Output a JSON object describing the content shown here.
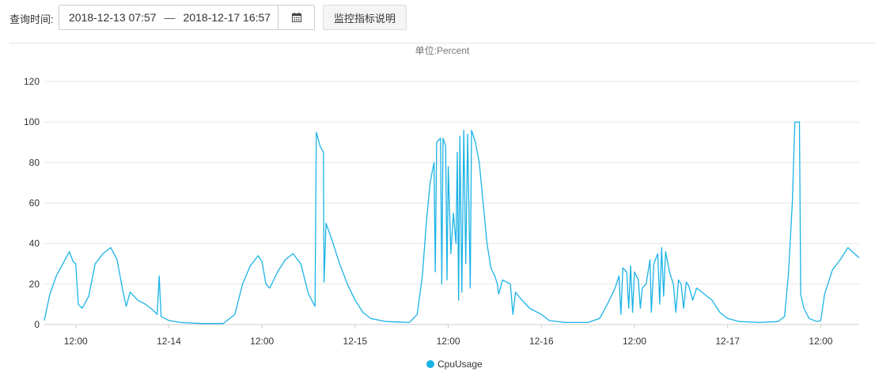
{
  "query": {
    "label": "查询时间:",
    "start": "2018-12-13 07:57",
    "separator": "—",
    "end": "2018-12-17 16:57",
    "calendar_icon": "calendar-icon",
    "help_button": "监控指标说明"
  },
  "chart_data": {
    "type": "line",
    "title": "",
    "unit_label": "单位:Percent",
    "xlabel": "",
    "ylabel": "",
    "ylim": [
      0,
      120
    ],
    "yticks": [
      0,
      20,
      40,
      60,
      80,
      100,
      120
    ],
    "xlim": [
      "2018-12-13 07:57",
      "2018-12-17 16:57"
    ],
    "xticks": [
      {
        "t": "2018-12-13 12:00",
        "label": "12:00"
      },
      {
        "t": "2018-12-14 00:00",
        "label": "12-14"
      },
      {
        "t": "2018-12-14 12:00",
        "label": "12:00"
      },
      {
        "t": "2018-12-15 00:00",
        "label": "12-15"
      },
      {
        "t": "2018-12-15 12:00",
        "label": "12:00"
      },
      {
        "t": "2018-12-16 00:00",
        "label": "12-16"
      },
      {
        "t": "2018-12-16 12:00",
        "label": "12:00"
      },
      {
        "t": "2018-12-17 00:00",
        "label": "12-17"
      },
      {
        "t": "2018-12-17 12:00",
        "label": "12:00"
      }
    ],
    "grid": "horizontal",
    "legend_position": "bottom-center",
    "series": [
      {
        "name": "CpuUsage",
        "color": "#1ab3e6",
        "points": [
          [
            "2018-12-13 07:57",
            2
          ],
          [
            "2018-12-13 08:40",
            15
          ],
          [
            "2018-12-13 09:30",
            24
          ],
          [
            "2018-12-13 10:20",
            30
          ],
          [
            "2018-12-13 11:10",
            36
          ],
          [
            "2018-12-13 11:40",
            31
          ],
          [
            "2018-12-13 12:00",
            30
          ],
          [
            "2018-12-13 12:20",
            10
          ],
          [
            "2018-12-13 12:50",
            8
          ],
          [
            "2018-12-13 13:40",
            14
          ],
          [
            "2018-12-13 14:30",
            30
          ],
          [
            "2018-12-13 15:30",
            35
          ],
          [
            "2018-12-13 16:30",
            38
          ],
          [
            "2018-12-13 17:20",
            32
          ],
          [
            "2018-12-13 18:00",
            18
          ],
          [
            "2018-12-13 18:30",
            9
          ],
          [
            "2018-12-13 19:00",
            16
          ],
          [
            "2018-12-13 20:00",
            12
          ],
          [
            "2018-12-13 21:00",
            10
          ],
          [
            "2018-12-13 22:00",
            7
          ],
          [
            "2018-12-13 22:30",
            5
          ],
          [
            "2018-12-13 22:45",
            24
          ],
          [
            "2018-12-13 23:00",
            4
          ],
          [
            "2018-12-14 00:00",
            2
          ],
          [
            "2018-12-14 01:30",
            1
          ],
          [
            "2018-12-14 04:00",
            0.5
          ],
          [
            "2018-12-14 07:00",
            0.5
          ],
          [
            "2018-12-14 08:30",
            5
          ],
          [
            "2018-12-14 09:30",
            20
          ],
          [
            "2018-12-14 10:30",
            29
          ],
          [
            "2018-12-14 11:30",
            34
          ],
          [
            "2018-12-14 12:00",
            31
          ],
          [
            "2018-12-14 12:30",
            20
          ],
          [
            "2018-12-14 13:00",
            18
          ],
          [
            "2018-12-14 14:00",
            26
          ],
          [
            "2018-12-14 15:00",
            32
          ],
          [
            "2018-12-14 16:00",
            35
          ],
          [
            "2018-12-14 17:00",
            30
          ],
          [
            "2018-12-14 18:00",
            15
          ],
          [
            "2018-12-14 18:50",
            9
          ],
          [
            "2018-12-14 19:00",
            95
          ],
          [
            "2018-12-14 19:30",
            88
          ],
          [
            "2018-12-14 19:55",
            85
          ],
          [
            "2018-12-14 20:00",
            21
          ],
          [
            "2018-12-14 20:15",
            50
          ],
          [
            "2018-12-14 21:00",
            42
          ],
          [
            "2018-12-14 22:00",
            30
          ],
          [
            "2018-12-14 23:00",
            20
          ],
          [
            "2018-12-15 00:00",
            12
          ],
          [
            "2018-12-15 01:00",
            6
          ],
          [
            "2018-12-15 02:00",
            3
          ],
          [
            "2018-12-15 04:00",
            1.5
          ],
          [
            "2018-12-15 07:00",
            1
          ],
          [
            "2018-12-15 08:00",
            5
          ],
          [
            "2018-12-15 08:40",
            24
          ],
          [
            "2018-12-15 09:10",
            50
          ],
          [
            "2018-12-15 09:40",
            70
          ],
          [
            "2018-12-15 10:10",
            80
          ],
          [
            "2018-12-15 10:20",
            26
          ],
          [
            "2018-12-15 10:30",
            90
          ],
          [
            "2018-12-15 11:00",
            92
          ],
          [
            "2018-12-15 11:10",
            20
          ],
          [
            "2018-12-15 11:20",
            92
          ],
          [
            "2018-12-15 11:40",
            88
          ],
          [
            "2018-12-15 11:50",
            22
          ],
          [
            "2018-12-15 12:00",
            78
          ],
          [
            "2018-12-15 12:20",
            35
          ],
          [
            "2018-12-15 12:40",
            55
          ],
          [
            "2018-12-15 13:00",
            40
          ],
          [
            "2018-12-15 13:10",
            85
          ],
          [
            "2018-12-15 13:20",
            12
          ],
          [
            "2018-12-15 13:30",
            93
          ],
          [
            "2018-12-15 13:45",
            16
          ],
          [
            "2018-12-15 14:00",
            96
          ],
          [
            "2018-12-15 14:15",
            30
          ],
          [
            "2018-12-15 14:30",
            94
          ],
          [
            "2018-12-15 14:50",
            18
          ],
          [
            "2018-12-15 15:00",
            96
          ],
          [
            "2018-12-15 15:30",
            90
          ],
          [
            "2018-12-15 16:00",
            80
          ],
          [
            "2018-12-15 16:30",
            60
          ],
          [
            "2018-12-15 17:00",
            40
          ],
          [
            "2018-12-15 17:30",
            28
          ],
          [
            "2018-12-15 18:00",
            24
          ],
          [
            "2018-12-15 18:20",
            20
          ],
          [
            "2018-12-15 18:30",
            15
          ],
          [
            "2018-12-15 19:00",
            22
          ],
          [
            "2018-12-15 20:00",
            20
          ],
          [
            "2018-12-15 20:20",
            5
          ],
          [
            "2018-12-15 20:40",
            16
          ],
          [
            "2018-12-15 21:30",
            12
          ],
          [
            "2018-12-15 22:30",
            8
          ],
          [
            "2018-12-16 00:00",
            5
          ],
          [
            "2018-12-16 01:00",
            2
          ],
          [
            "2018-12-16 03:00",
            1
          ],
          [
            "2018-12-16 06:00",
            1
          ],
          [
            "2018-12-16 07:30",
            3
          ],
          [
            "2018-12-16 08:30",
            10
          ],
          [
            "2018-12-16 09:30",
            18
          ],
          [
            "2018-12-16 10:00",
            24
          ],
          [
            "2018-12-16 10:15",
            5
          ],
          [
            "2018-12-16 10:30",
            28
          ],
          [
            "2018-12-16 11:00",
            26
          ],
          [
            "2018-12-16 11:15",
            8
          ],
          [
            "2018-12-16 11:30",
            29
          ],
          [
            "2018-12-16 11:45",
            6
          ],
          [
            "2018-12-16 12:00",
            26
          ],
          [
            "2018-12-16 12:30",
            22
          ],
          [
            "2018-12-16 12:45",
            8
          ],
          [
            "2018-12-16 13:00",
            18
          ],
          [
            "2018-12-16 13:30",
            20
          ],
          [
            "2018-12-16 14:00",
            32
          ],
          [
            "2018-12-16 14:10",
            6
          ],
          [
            "2018-12-16 14:30",
            30
          ],
          [
            "2018-12-16 15:00",
            35
          ],
          [
            "2018-12-16 15:15",
            10
          ],
          [
            "2018-12-16 15:30",
            38
          ],
          [
            "2018-12-16 15:45",
            14
          ],
          [
            "2018-12-16 16:00",
            36
          ],
          [
            "2018-12-16 16:30",
            26
          ],
          [
            "2018-12-16 17:00",
            20
          ],
          [
            "2018-12-16 17:20",
            6
          ],
          [
            "2018-12-16 17:40",
            22
          ],
          [
            "2018-12-16 18:00",
            20
          ],
          [
            "2018-12-16 18:20",
            8
          ],
          [
            "2018-12-16 18:40",
            21
          ],
          [
            "2018-12-16 19:00",
            19
          ],
          [
            "2018-12-16 19:30",
            12
          ],
          [
            "2018-12-16 20:00",
            18
          ],
          [
            "2018-12-16 21:00",
            15
          ],
          [
            "2018-12-16 22:00",
            12
          ],
          [
            "2018-12-16 23:00",
            6
          ],
          [
            "2018-12-17 00:00",
            3
          ],
          [
            "2018-12-17 01:30",
            1.5
          ],
          [
            "2018-12-17 04:00",
            1
          ],
          [
            "2018-12-17 06:30",
            1.5
          ],
          [
            "2018-12-17 07:20",
            4
          ],
          [
            "2018-12-17 07:50",
            25
          ],
          [
            "2018-12-17 08:20",
            60
          ],
          [
            "2018-12-17 08:40",
            100
          ],
          [
            "2018-12-17 09:15",
            100
          ],
          [
            "2018-12-17 09:25",
            15
          ],
          [
            "2018-12-17 09:50",
            8
          ],
          [
            "2018-12-17 10:30",
            3
          ],
          [
            "2018-12-17 11:30",
            1.5
          ],
          [
            "2018-12-17 12:00",
            2
          ],
          [
            "2018-12-17 12:30",
            15
          ],
          [
            "2018-12-17 13:30",
            27
          ],
          [
            "2018-12-17 14:30",
            32
          ],
          [
            "2018-12-17 15:30",
            38
          ],
          [
            "2018-12-17 16:20",
            35
          ],
          [
            "2018-12-17 16:57",
            33
          ]
        ]
      }
    ]
  }
}
